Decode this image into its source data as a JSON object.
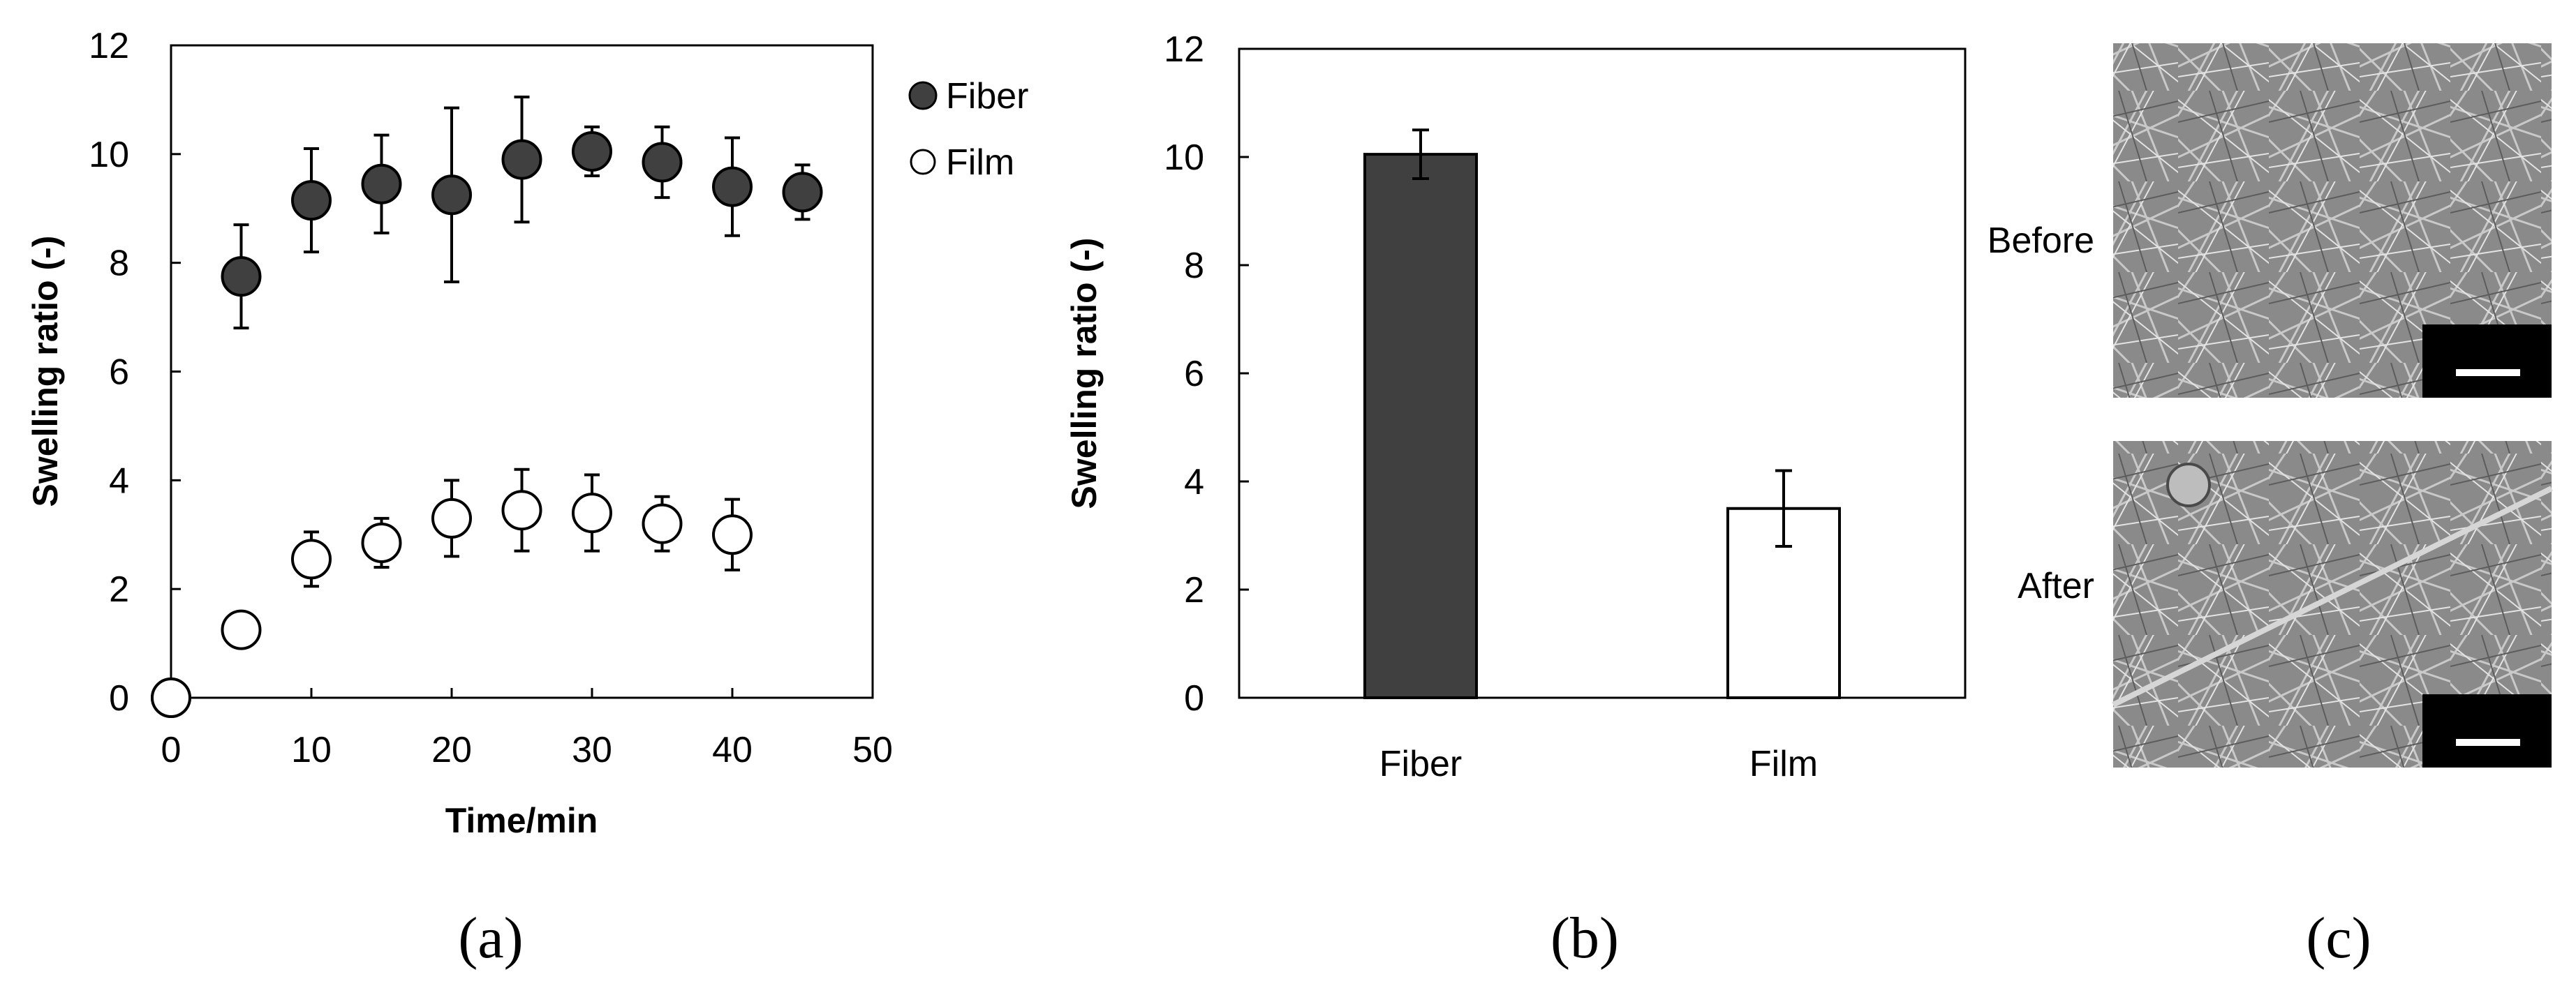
{
  "panels": {
    "a": "(a)",
    "b": "(b)",
    "c": "(c)"
  },
  "chart_data": [
    {
      "type": "scatter",
      "panel": "a",
      "title": "",
      "xlabel": "Time/min",
      "ylabel": "Swelling ratio (-)",
      "xlim": [
        0,
        50
      ],
      "ylim": [
        0,
        12
      ],
      "xticks": [
        0,
        10,
        20,
        30,
        40,
        50
      ],
      "yticks": [
        0,
        2,
        4,
        6,
        8,
        10,
        12
      ],
      "grid": false,
      "legend_position": "top-right, outside plot",
      "series": [
        {
          "name": "Fiber",
          "marker": "filled-circle",
          "color": "#404040",
          "x": [
            0,
            5,
            10,
            15,
            20,
            25,
            30,
            35,
            40,
            45
          ],
          "y": [
            0,
            7.75,
            9.15,
            9.45,
            9.25,
            9.9,
            10.05,
            9.85,
            9.4,
            9.3
          ],
          "err": [
            0,
            0.95,
            0.95,
            0.9,
            1.6,
            1.15,
            0.45,
            0.65,
            0.9,
            0.5
          ]
        },
        {
          "name": "Film",
          "marker": "open-circle",
          "color": "#000000",
          "x": [
            0,
            5,
            10,
            15,
            20,
            25,
            30,
            35,
            40
          ],
          "y": [
            0,
            1.25,
            2.55,
            2.85,
            3.3,
            3.45,
            3.4,
            3.2,
            3.0
          ],
          "err": [
            0,
            0,
            0.5,
            0.45,
            0.7,
            0.75,
            0.7,
            0.5,
            0.65
          ]
        }
      ]
    },
    {
      "type": "bar",
      "panel": "b",
      "title": "",
      "xlabel": "",
      "ylabel": "Swelling ratio (-)",
      "ylim": [
        0,
        12
      ],
      "yticks": [
        0,
        2,
        4,
        6,
        8,
        10,
        12
      ],
      "grid": false,
      "categories": [
        "Fiber",
        "Film"
      ],
      "values": [
        10.05,
        3.5
      ],
      "err": [
        0.45,
        0.7
      ],
      "colors": [
        "#404040",
        "#ffffff"
      ]
    }
  ],
  "images": {
    "before_label": "Before",
    "after_label": "After",
    "subject": "SEM micrograph of fiber mat",
    "scale_bar_color": "#ffffff"
  }
}
